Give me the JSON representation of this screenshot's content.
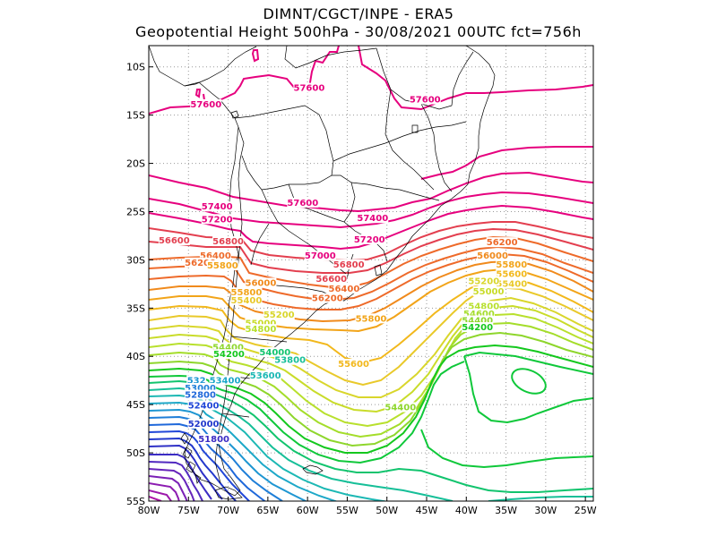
{
  "header": {
    "line1": "DIMNT/CGCT/INPE -  ERA5",
    "line2": "Geopotential Height 500hPa -  30/08/2021 00UTC fct=756h"
  },
  "axes": {
    "lon_labels": [
      "80W",
      "75W",
      "70W",
      "65W",
      "60W",
      "55W",
      "50W",
      "45W",
      "40W",
      "35W",
      "30W",
      "25W"
    ],
    "lat_labels": [
      "10S",
      "15S",
      "20S",
      "25S",
      "30S",
      "35S",
      "40S",
      "45S",
      "50S",
      "55S"
    ]
  },
  "contour_labels": [
    {
      "text": "57600",
      "color": "#e6007e",
      "lon": -72.8,
      "lat": -14.1
    },
    {
      "text": "57600",
      "color": "#e6007e",
      "lon": -59.8,
      "lat": -12.4
    },
    {
      "text": "57600",
      "color": "#e6007e",
      "lon": -45.2,
      "lat": -13.6
    },
    {
      "text": "57600",
      "color": "#e6007e",
      "lon": -60.6,
      "lat": -24.3
    },
    {
      "text": "57400",
      "color": "#e6007e",
      "lon": -71.4,
      "lat": -24.7
    },
    {
      "text": "57400",
      "color": "#e6007e",
      "lon": -51.8,
      "lat": -25.9
    },
    {
      "text": "57200",
      "color": "#e6007e",
      "lon": -71.4,
      "lat": -26.0
    },
    {
      "text": "57200",
      "color": "#e6007e",
      "lon": -52.2,
      "lat": -28.1
    },
    {
      "text": "57000",
      "color": "#e6007e",
      "lon": -58.4,
      "lat": -29.8
    },
    {
      "text": "56800",
      "color": "#e33f4f",
      "lon": -70.0,
      "lat": -28.3
    },
    {
      "text": "56800",
      "color": "#e33f4f",
      "lon": -54.8,
      "lat": -30.7
    },
    {
      "text": "56600",
      "color": "#e33f4f",
      "lon": -76.8,
      "lat": -28.2
    },
    {
      "text": "56600",
      "color": "#e33f4f",
      "lon": -57.0,
      "lat": -32.2
    },
    {
      "text": "56400",
      "color": "#ee6a2a",
      "lon": -71.6,
      "lat": -29.8
    },
    {
      "text": "56400",
      "color": "#ee6a2a",
      "lon": -55.4,
      "lat": -33.2
    },
    {
      "text": "56200",
      "color": "#ee6a2a",
      "lon": -73.5,
      "lat": -30.5
    },
    {
      "text": "56200",
      "color": "#ee6a2a",
      "lon": -57.5,
      "lat": -34.2
    },
    {
      "text": "56200",
      "color": "#ee6a2a",
      "lon": -35.5,
      "lat": -28.4
    },
    {
      "text": "56000",
      "color": "#f08a1c",
      "lon": -65.9,
      "lat": -32.6
    },
    {
      "text": "56000",
      "color": "#f08a1c",
      "lon": -36.7,
      "lat": -29.8
    },
    {
      "text": "55800",
      "color": "#f2a419",
      "lon": -70.7,
      "lat": -30.8
    },
    {
      "text": "55800",
      "color": "#f2a419",
      "lon": -67.7,
      "lat": -33.6
    },
    {
      "text": "55800",
      "color": "#f2a419",
      "lon": -52.0,
      "lat": -36.3
    },
    {
      "text": "55800",
      "color": "#f2a419",
      "lon": -34.3,
      "lat": -30.7
    },
    {
      "text": "55600",
      "color": "#f2b81c",
      "lon": -34.3,
      "lat": -31.7
    },
    {
      "text": "55600",
      "color": "#f2b81c",
      "lon": -54.2,
      "lat": -41.0
    },
    {
      "text": "55400",
      "color": "#e9c92a",
      "lon": -67.7,
      "lat": -34.4
    },
    {
      "text": "55400",
      "color": "#e9c92a",
      "lon": -34.3,
      "lat": -32.7
    },
    {
      "text": "55200",
      "color": "#d9d62c",
      "lon": -63.6,
      "lat": -35.9
    },
    {
      "text": "55200",
      "color": "#d9d62c",
      "lon": -37.8,
      "lat": -32.4
    },
    {
      "text": "55000",
      "color": "#c9dc2a",
      "lon": -65.9,
      "lat": -36.8
    },
    {
      "text": "55000",
      "color": "#c9dc2a",
      "lon": -37.2,
      "lat": -33.5
    },
    {
      "text": "54800",
      "color": "#b8e02d",
      "lon": -37.8,
      "lat": -35.0
    },
    {
      "text": "54800",
      "color": "#b8e02d",
      "lon": -65.9,
      "lat": -37.4
    },
    {
      "text": "54600",
      "color": "#a4dd2a",
      "lon": -38.4,
      "lat": -35.8
    },
    {
      "text": "54400",
      "color": "#8ed62c",
      "lon": -70.0,
      "lat": -39.3
    },
    {
      "text": "54400",
      "color": "#8ed62c",
      "lon": -38.6,
      "lat": -36.5
    },
    {
      "text": "54400",
      "color": "#8ed62c",
      "lon": -48.3,
      "lat": -45.5
    },
    {
      "text": "54200",
      "color": "#14c81e",
      "lon": -69.9,
      "lat": -40.0
    },
    {
      "text": "54200",
      "color": "#14c81e",
      "lon": -38.6,
      "lat": -37.2
    },
    {
      "text": "54000",
      "color": "#12c46e",
      "lon": -64.1,
      "lat": -39.8
    },
    {
      "text": "53800",
      "color": "#16bf98",
      "lon": -62.2,
      "lat": -40.6
    },
    {
      "text": "53600",
      "color": "#1cb8b4",
      "lon": -65.3,
      "lat": -42.2
    },
    {
      "text": "53400",
      "color": "#1da8c8",
      "lon": -70.4,
      "lat": -42.7
    },
    {
      "text": "532",
      "color": "#1e96d2",
      "lon": -74.0,
      "lat": -42.7
    },
    {
      "text": "53000",
      "color": "#1e7ed8",
      "lon": -73.5,
      "lat": -43.5
    },
    {
      "text": "52800",
      "color": "#1f68da",
      "lon": -73.5,
      "lat": -44.2
    },
    {
      "text": "52400",
      "color": "#2147d8",
      "lon": -73.1,
      "lat": -45.3
    },
    {
      "text": "52000",
      "color": "#2238cc",
      "lon": -73.1,
      "lat": -47.2
    },
    {
      "text": "51800",
      "color": "#3b2cc4",
      "lon": -71.8,
      "lat": -48.8
    }
  ]
}
